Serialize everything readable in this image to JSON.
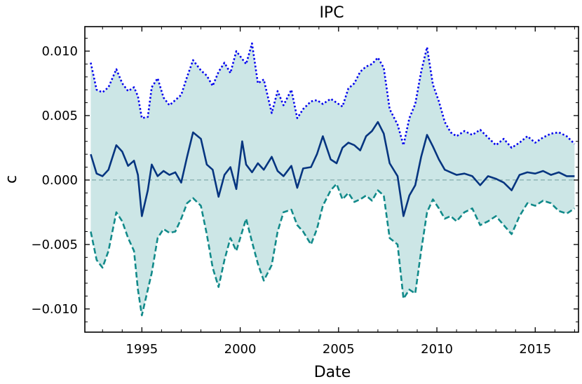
{
  "chart_data": {
    "type": "line",
    "title": "IPC",
    "xlabel": "Date",
    "ylabel": "c",
    "xlim": [
      1992.1,
      2017.2
    ],
    "ylim": [
      -0.0118,
      0.0119
    ],
    "x_ticks": [
      1995,
      2000,
      2005,
      2010,
      2015
    ],
    "x_tick_labels": [
      "1995",
      "2000",
      "2005",
      "2010",
      "2015"
    ],
    "y_ticks": [
      0.01,
      0.005,
      0.0,
      -0.005,
      -0.01
    ],
    "y_tick_labels": [
      "0.010",
      "0.005",
      "0.000",
      "−0.005",
      "−0.010"
    ],
    "zero_line": 0.0,
    "band_color": "#cce6e6",
    "series": [
      {
        "style": "dotted",
        "color": "#0000ee",
        "x": [
          1992.4,
          1992.7,
          1993.0,
          1993.3,
          1993.7,
          1994.0,
          1994.3,
          1994.6,
          1994.8,
          1995.0,
          1995.3,
          1995.5,
          1995.8,
          1996.1,
          1996.4,
          1996.7,
          1997.0,
          1997.3,
          1997.6,
          1998.0,
          1998.3,
          1998.6,
          1998.9,
          1999.2,
          1999.5,
          1999.8,
          2000.1,
          2000.3,
          2000.6,
          2000.9,
          2001.2,
          2001.6,
          2001.9,
          2002.2,
          2002.6,
          2002.9,
          2003.2,
          2003.6,
          2003.9,
          2004.2,
          2004.6,
          2004.9,
          2005.2,
          2005.5,
          2005.8,
          2006.1,
          2006.4,
          2006.7,
          2007.0,
          2007.3,
          2007.6,
          2008.0,
          2008.3,
          2008.6,
          2008.9,
          2009.2,
          2009.5,
          2009.8,
          2010.1,
          2010.4,
          2010.7,
          2011.0,
          2011.4,
          2011.8,
          2012.2,
          2012.6,
          2013.0,
          2013.4,
          2013.8,
          2014.2,
          2014.6,
          2015.0,
          2015.4,
          2015.8,
          2016.2,
          2016.6,
          2017.0
        ],
        "y": [
          0.0091,
          0.007,
          0.0068,
          0.0072,
          0.0086,
          0.0075,
          0.0069,
          0.0072,
          0.0065,
          0.0048,
          0.0049,
          0.0072,
          0.0079,
          0.0064,
          0.0058,
          0.0062,
          0.0066,
          0.008,
          0.0093,
          0.0085,
          0.0081,
          0.0073,
          0.0084,
          0.0091,
          0.0083,
          0.01,
          0.0094,
          0.009,
          0.0106,
          0.0075,
          0.0078,
          0.0052,
          0.0069,
          0.0058,
          0.007,
          0.0048,
          0.0055,
          0.0061,
          0.0062,
          0.0059,
          0.0063,
          0.006,
          0.0057,
          0.0071,
          0.0075,
          0.0084,
          0.0088,
          0.009,
          0.0095,
          0.0087,
          0.0055,
          0.0043,
          0.0027,
          0.0048,
          0.0059,
          0.0084,
          0.0103,
          0.0074,
          0.0061,
          0.0045,
          0.0037,
          0.0034,
          0.0038,
          0.0035,
          0.0039,
          0.0033,
          0.0027,
          0.0032,
          0.0025,
          0.0029,
          0.0034,
          0.0029,
          0.0033,
          0.0036,
          0.0037,
          0.0034,
          0.0028
        ]
      },
      {
        "style": "solid",
        "color": "#063580",
        "x": [
          1992.4,
          1992.7,
          1993.0,
          1993.3,
          1993.7,
          1994.0,
          1994.3,
          1994.6,
          1994.8,
          1995.0,
          1995.3,
          1995.5,
          1995.8,
          1996.1,
          1996.4,
          1996.7,
          1997.0,
          1997.3,
          1997.6,
          1998.0,
          1998.3,
          1998.6,
          1998.9,
          1999.2,
          1999.5,
          1999.8,
          2000.1,
          2000.3,
          2000.6,
          2000.9,
          2001.2,
          2001.6,
          2001.9,
          2002.2,
          2002.6,
          2002.9,
          2003.2,
          2003.6,
          2003.9,
          2004.2,
          2004.6,
          2004.9,
          2005.2,
          2005.5,
          2005.8,
          2006.1,
          2006.4,
          2006.7,
          2007.0,
          2007.3,
          2007.6,
          2008.0,
          2008.3,
          2008.6,
          2008.9,
          2009.2,
          2009.5,
          2009.8,
          2010.1,
          2010.4,
          2010.7,
          2011.0,
          2011.4,
          2011.8,
          2012.2,
          2012.6,
          2013.0,
          2013.4,
          2013.8,
          2014.2,
          2014.6,
          2015.0,
          2015.4,
          2015.8,
          2016.2,
          2016.6,
          2017.0
        ],
        "y": [
          0.002,
          0.0005,
          0.0003,
          0.0008,
          0.0027,
          0.0022,
          0.0011,
          0.0015,
          0.0004,
          -0.0028,
          -0.0008,
          0.0012,
          0.0003,
          0.0007,
          0.0004,
          0.0006,
          -0.0002,
          0.0018,
          0.0037,
          0.0032,
          0.0012,
          0.0008,
          -0.0013,
          0.0004,
          0.001,
          -0.0007,
          0.003,
          0.0012,
          0.0006,
          0.0013,
          0.0008,
          0.0018,
          0.0007,
          0.0003,
          0.0011,
          -0.0006,
          0.0009,
          0.001,
          0.002,
          0.0034,
          0.0016,
          0.0013,
          0.0025,
          0.0029,
          0.0027,
          0.0023,
          0.0034,
          0.0038,
          0.0045,
          0.0036,
          0.0013,
          0.0003,
          -0.0028,
          -0.0012,
          -0.0004,
          0.0018,
          0.0035,
          0.0026,
          0.0016,
          0.0008,
          0.0006,
          0.0004,
          0.0005,
          0.0003,
          -0.0004,
          0.0003,
          0.0001,
          -0.0002,
          -0.0008,
          0.0004,
          0.0006,
          0.0005,
          0.0007,
          0.0004,
          0.0006,
          0.0003,
          0.0003
        ]
      },
      {
        "style": "dashed",
        "color": "#128a8a",
        "x": [
          1992.4,
          1992.7,
          1993.0,
          1993.3,
          1993.7,
          1994.0,
          1994.3,
          1994.6,
          1994.8,
          1995.0,
          1995.3,
          1995.5,
          1995.8,
          1996.1,
          1996.4,
          1996.7,
          1997.0,
          1997.3,
          1997.6,
          1998.0,
          1998.3,
          1998.6,
          1998.9,
          1999.2,
          1999.5,
          1999.8,
          2000.1,
          2000.3,
          2000.6,
          2000.9,
          2001.2,
          2001.6,
          2001.9,
          2002.2,
          2002.6,
          2002.9,
          2003.2,
          2003.6,
          2003.9,
          2004.2,
          2004.6,
          2004.9,
          2005.2,
          2005.5,
          2005.8,
          2006.1,
          2006.4,
          2006.7,
          2007.0,
          2007.3,
          2007.6,
          2008.0,
          2008.3,
          2008.6,
          2008.9,
          2009.2,
          2009.5,
          2009.8,
          2010.1,
          2010.4,
          2010.7,
          2011.0,
          2011.4,
          2011.8,
          2012.2,
          2012.6,
          2013.0,
          2013.4,
          2013.8,
          2014.2,
          2014.6,
          2015.0,
          2015.4,
          2015.8,
          2016.2,
          2016.6,
          2017.0
        ],
        "y": [
          -0.004,
          -0.0062,
          -0.0068,
          -0.0055,
          -0.0025,
          -0.0032,
          -0.0045,
          -0.0055,
          -0.0085,
          -0.0105,
          -0.0085,
          -0.0072,
          -0.0045,
          -0.0038,
          -0.0041,
          -0.004,
          -0.003,
          -0.0018,
          -0.0014,
          -0.002,
          -0.0042,
          -0.0068,
          -0.0083,
          -0.0062,
          -0.0045,
          -0.0055,
          -0.004,
          -0.003,
          -0.0048,
          -0.0065,
          -0.0078,
          -0.0066,
          -0.004,
          -0.0025,
          -0.0023,
          -0.0035,
          -0.004,
          -0.005,
          -0.0038,
          -0.002,
          -0.0008,
          -0.0003,
          -0.0015,
          -0.001,
          -0.0017,
          -0.0015,
          -0.0012,
          -0.0016,
          -0.0008,
          -0.0012,
          -0.0045,
          -0.005,
          -0.0092,
          -0.0085,
          -0.0088,
          -0.0055,
          -0.0025,
          -0.0015,
          -0.0022,
          -0.003,
          -0.0028,
          -0.0032,
          -0.0025,
          -0.0022,
          -0.0035,
          -0.0032,
          -0.0028,
          -0.0035,
          -0.0042,
          -0.0028,
          -0.0018,
          -0.002,
          -0.0016,
          -0.0018,
          -0.0024,
          -0.0026,
          -0.0022
        ]
      }
    ]
  }
}
